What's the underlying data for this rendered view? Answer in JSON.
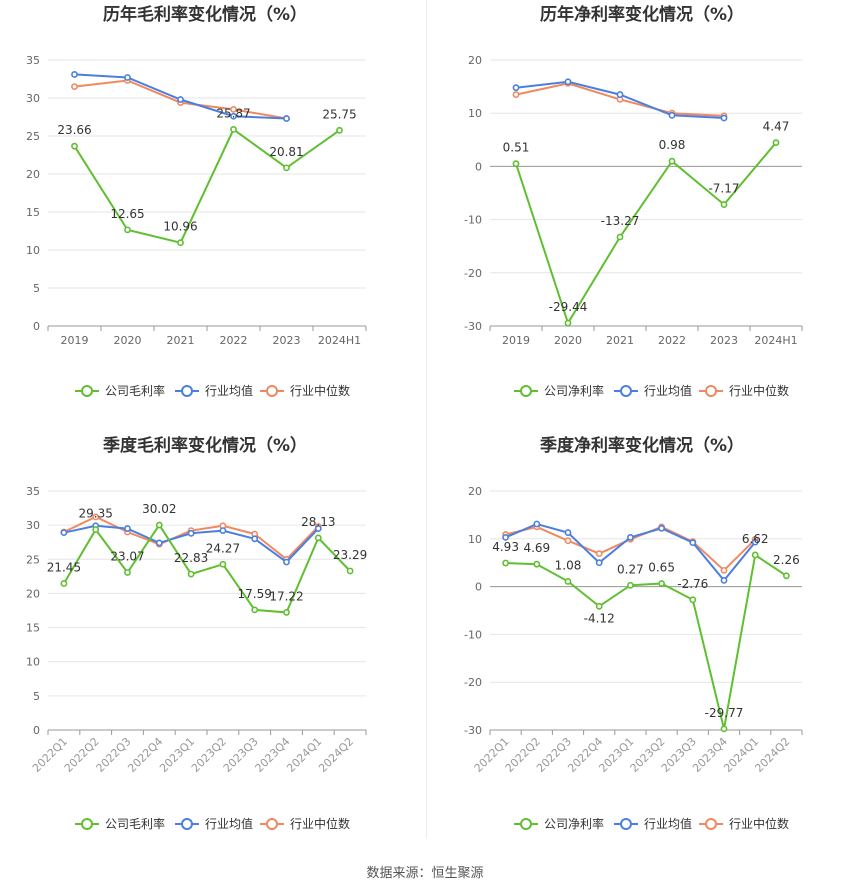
{
  "footer": {
    "source": "数据来源：恒生聚源"
  },
  "colors": {
    "company": "#5fbf31",
    "industry_avg": "#4a7fe0",
    "industry_median": "#f08860",
    "grid": "#e6e6e6",
    "axis": "#666666"
  },
  "chart_data": [
    {
      "type": "line",
      "title": "历年毛利率变化情况（%）",
      "categories": [
        "2019",
        "2020",
        "2021",
        "2022",
        "2023",
        "2024H1"
      ],
      "ylim": [
        0,
        35
      ],
      "yticks": [
        0,
        5,
        10,
        15,
        20,
        25,
        30,
        35
      ],
      "grid": true,
      "legend": "bottom-center",
      "series": [
        {
          "name": "公司毛利率",
          "values": [
            23.66,
            12.65,
            10.96,
            25.87,
            20.81,
            25.75
          ]
        },
        {
          "name": "行业均值",
          "values": [
            33.1,
            32.7,
            29.8,
            27.6,
            27.3,
            null
          ]
        },
        {
          "name": "行业中位数",
          "values": [
            31.5,
            32.3,
            29.4,
            28.5,
            27.3,
            null
          ]
        }
      ],
      "data_labels": [
        "23.66",
        "12.65",
        "10.96",
        "25.87",
        "20.81",
        "25.75"
      ]
    },
    {
      "type": "line",
      "title": "历年净利率变化情况（%）",
      "categories": [
        "2019",
        "2020",
        "2021",
        "2022",
        "2023",
        "2024H1"
      ],
      "ylim": [
        -30,
        20
      ],
      "yticks": [
        -30,
        -20,
        -10,
        0,
        10,
        20
      ],
      "grid": true,
      "legend": "bottom-center",
      "series": [
        {
          "name": "公司净利率",
          "values": [
            0.51,
            -29.44,
            -13.27,
            0.98,
            -7.17,
            4.47
          ]
        },
        {
          "name": "行业均值",
          "values": [
            14.8,
            15.9,
            13.5,
            9.6,
            9.1,
            null
          ]
        },
        {
          "name": "行业中位数",
          "values": [
            13.5,
            15.6,
            12.6,
            10.0,
            9.5,
            null
          ]
        }
      ],
      "data_labels": [
        "0.51",
        "-29.44",
        "-13.27",
        "0.98",
        "-7.17",
        "4.47"
      ]
    },
    {
      "type": "line",
      "title": "季度毛利率变化情况（%）",
      "categories": [
        "2022Q1",
        "2022Q2",
        "2022Q3",
        "2022Q4",
        "2023Q1",
        "2023Q2",
        "2023Q3",
        "2023Q4",
        "2024Q1",
        "2024Q2"
      ],
      "ylim": [
        0,
        35
      ],
      "yticks": [
        0,
        5,
        10,
        15,
        20,
        25,
        30,
        35
      ],
      "grid": true,
      "legend": "bottom-center",
      "series": [
        {
          "name": "公司毛利率",
          "values": [
            21.45,
            29.35,
            23.07,
            30.02,
            22.83,
            24.27,
            17.59,
            17.22,
            28.13,
            23.29
          ]
        },
        {
          "name": "行业均值",
          "values": [
            28.9,
            29.9,
            29.5,
            27.4,
            28.8,
            29.2,
            28.0,
            24.6,
            29.5,
            null
          ]
        },
        {
          "name": "行业中位数",
          "values": [
            29.0,
            31.2,
            29.0,
            27.2,
            29.2,
            29.9,
            28.7,
            25.0,
            29.8,
            null
          ]
        }
      ],
      "data_labels": [
        "21.45",
        "29.35",
        "23.07",
        "30.02",
        "22.83",
        "24.27",
        "17.59",
        "17.22",
        "28.13",
        "23.29"
      ]
    },
    {
      "type": "line",
      "title": "季度净利率变化情况（%）",
      "categories": [
        "2022Q1",
        "2022Q2",
        "2022Q3",
        "2022Q4",
        "2023Q1",
        "2023Q2",
        "2023Q3",
        "2023Q4",
        "2024Q1",
        "2024Q2"
      ],
      "ylim": [
        -30,
        20
      ],
      "yticks": [
        -30,
        -20,
        -10,
        0,
        10,
        20
      ],
      "grid": true,
      "legend": "bottom-center",
      "series": [
        {
          "name": "公司净利率",
          "values": [
            4.93,
            4.69,
            1.08,
            -4.12,
            0.27,
            0.65,
            -2.76,
            -29.77,
            6.62,
            2.26
          ]
        },
        {
          "name": "行业均值",
          "values": [
            10.3,
            13.1,
            11.3,
            5.0,
            10.3,
            12.2,
            9.2,
            1.3,
            9.3,
            null
          ]
        },
        {
          "name": "行业中位数",
          "values": [
            10.9,
            12.5,
            9.6,
            6.9,
            9.9,
            12.5,
            9.4,
            3.4,
            9.9,
            null
          ]
        }
      ],
      "data_labels": [
        "4.93",
        "4.69",
        "1.08",
        "-4.12",
        "0.27",
        "0.65",
        "-2.76",
        "-29.77",
        "6.62",
        "2.26"
      ]
    }
  ]
}
